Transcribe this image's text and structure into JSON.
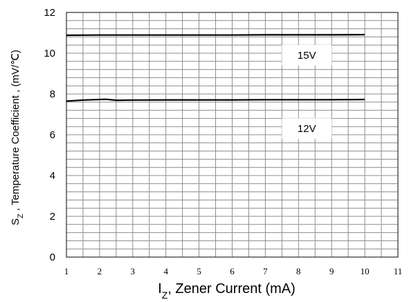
{
  "chart_data": {
    "type": "line",
    "xlabel": {
      "main": "I",
      "sub": "Z",
      "rest": ", Zener Current (mA)"
    },
    "ylabel": {
      "main": "S",
      "sub": "Z",
      "rest": " , Temperature Coefficient , (mV/℃)"
    },
    "xlim": [
      1,
      11
    ],
    "ylim": [
      0,
      12
    ],
    "x_ticks": [
      "1",
      "2",
      "3",
      "4",
      "5",
      "6",
      "7",
      "8",
      "9",
      "10",
      "11"
    ],
    "y_ticks": [
      "0",
      "2",
      "4",
      "6",
      "8",
      "10",
      "12"
    ],
    "grid": true,
    "series": [
      {
        "name": "15V",
        "x": [
          1,
          2,
          3,
          4,
          5,
          6,
          7,
          8,
          9,
          10
        ],
        "y": [
          10.88,
          10.89,
          10.89,
          10.89,
          10.89,
          10.89,
          10.9,
          10.9,
          10.9,
          10.91
        ]
      },
      {
        "name": "12V",
        "x": [
          1,
          1.5,
          2,
          2.2,
          2.5,
          3,
          4,
          5,
          6,
          7,
          8,
          9,
          10
        ],
        "y": [
          7.65,
          7.7,
          7.73,
          7.74,
          7.69,
          7.7,
          7.71,
          7.71,
          7.71,
          7.72,
          7.72,
          7.72,
          7.73
        ]
      }
    ],
    "annotations": [
      {
        "text": "15V",
        "x": 8.25,
        "y": 9.9
      },
      {
        "text": "12V",
        "x": 8.25,
        "y": 6.3
      }
    ]
  }
}
